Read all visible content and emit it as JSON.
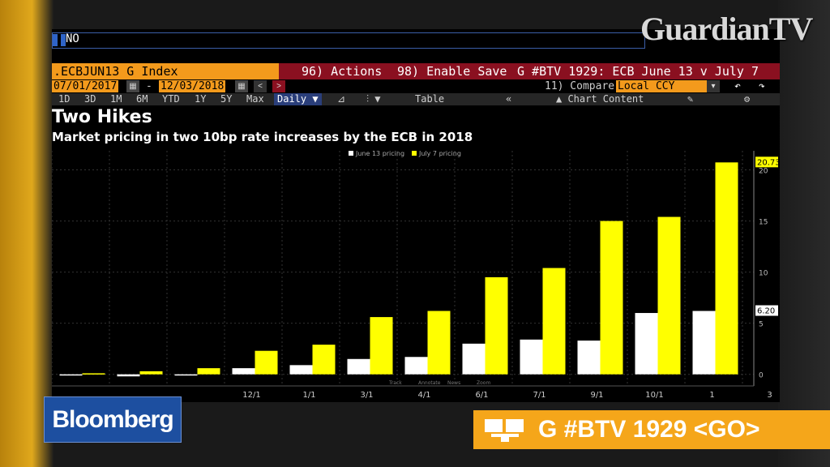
{
  "command": {
    "value": "NO"
  },
  "watermark": {
    "text": "GuardianTV"
  },
  "toolbar": {
    "ticker": ".ECBJUN13 G Index",
    "actions": "96) Actions",
    "enable_save": "98) Enable Save",
    "chart_title": "G #BTV 1929: ECB June 13 v July 7"
  },
  "range": {
    "start": "07/01/2017",
    "end": "12/03/2018",
    "compare_label": "11) Compare",
    "currency": "Local CCY"
  },
  "periods": [
    "1D",
    "3D",
    "1M",
    "6M",
    "YTD",
    "1Y",
    "5Y",
    "Max"
  ],
  "toolbar2": {
    "frequency": "Daily",
    "table": "Table",
    "chart_content": "Chart Content"
  },
  "heading": {
    "title": "Two Hikes",
    "subtitle": "Market pricing in two 10bp rate increases by the ECB in 2018"
  },
  "bottom": {
    "bloomberg": "Bloomberg",
    "go_text": "G #BTV 1929 <GO>"
  },
  "colors": {
    "series_white": "#ffffff",
    "series_yellow": "#ffff00",
    "ticker_orange": "#f39a1c",
    "bar_red": "#8a1020",
    "bloomberg_blue": "#1d4fa0",
    "go_orange": "#f5a61a"
  },
  "chart_data": {
    "type": "bar",
    "categories": [
      "",
      "",
      "",
      "12/1",
      "1/1",
      "3/1",
      "4/1",
      "6/1",
      "7/1",
      "9/1",
      "10/1",
      "1"
    ],
    "extra_x_tick": "3",
    "series": [
      {
        "name": "June 13 pricing",
        "color": "#ffffff",
        "values": [
          0.0,
          -0.2,
          -0.1,
          0.6,
          0.9,
          1.5,
          1.7,
          3.0,
          3.4,
          3.3,
          6.0,
          6.2
        ]
      },
      {
        "name": "July 7 pricing",
        "color": "#ffff00",
        "values": [
          0.1,
          0.3,
          0.6,
          2.3,
          2.9,
          5.6,
          6.2,
          9.5,
          10.4,
          15.0,
          15.4,
          20.73
        ]
      }
    ],
    "yticks": [
      0,
      5,
      10,
      15,
      20
    ],
    "ylim": [
      -0.5,
      22.5
    ],
    "last_value_labels": [
      "20.73",
      "6.20"
    ],
    "bottom_legend": [
      "Track",
      "Annotate",
      "News",
      "Zoom"
    ],
    "grid": true,
    "legend_position": "top-center"
  }
}
